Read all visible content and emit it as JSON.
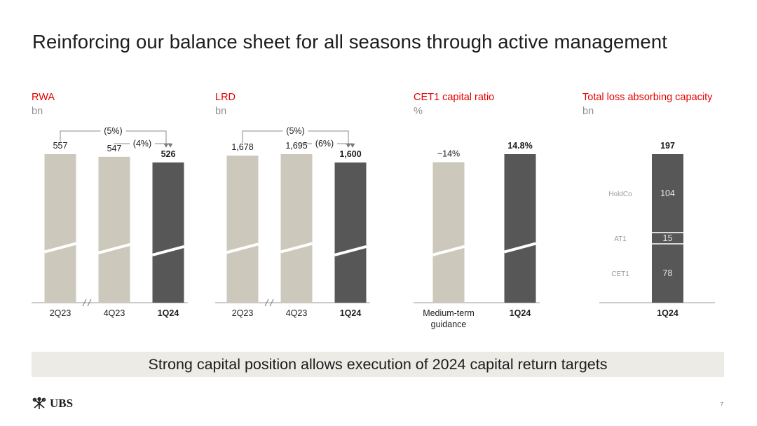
{
  "title": "Reinforcing our balance sheet for all seasons through active management",
  "banner": "Strong capital position allows execution of 2024 capital return targets",
  "logo_text": "UBS",
  "page_number": "7",
  "colors": {
    "accent": "#e60000",
    "bar_light": "#ccc9bc",
    "bar_dark": "#575757",
    "banner_bg": "#ecebe6",
    "unit_text": "#8e8e8e"
  },
  "chart_data": [
    {
      "id": "rwa",
      "type": "bar",
      "title": "RWA",
      "unit": "bn",
      "axis_break": "//",
      "categories": [
        "2Q23",
        "4Q23",
        "1Q24"
      ],
      "values": [
        557,
        547,
        526
      ],
      "value_labels": [
        "557",
        "547",
        "526"
      ],
      "highlight": [
        false,
        false,
        true
      ],
      "changes": [
        "(5%)",
        "(4%)"
      ],
      "change_from": [
        "2Q23",
        "4Q23"
      ],
      "change_to": "1Q24"
    },
    {
      "id": "lrd",
      "type": "bar",
      "title": "LRD",
      "unit": "bn",
      "axis_break": "//",
      "categories": [
        "2Q23",
        "4Q23",
        "1Q24"
      ],
      "values": [
        1678,
        1695,
        1600
      ],
      "value_labels": [
        "1,678",
        "1,695",
        "1,600"
      ],
      "highlight": [
        false,
        false,
        true
      ],
      "changes": [
        "(5%)",
        "(6%)"
      ],
      "change_from": [
        "2Q23",
        "4Q23"
      ],
      "change_to": "1Q24"
    },
    {
      "id": "cet1",
      "type": "bar",
      "title": "CET1 capital ratio",
      "unit": "%",
      "categories": [
        "Medium-term guidance",
        "1Q24"
      ],
      "category_lines": [
        [
          "Medium-term",
          "guidance"
        ],
        [
          "1Q24"
        ]
      ],
      "values": [
        14,
        14.8
      ],
      "value_labels": [
        "~14%",
        "14.8%"
      ],
      "highlight": [
        false,
        true
      ]
    },
    {
      "id": "tlac",
      "type": "bar",
      "stacked": true,
      "title": "Total loss absorbing capacity",
      "unit": "bn",
      "categories": [
        "1Q24"
      ],
      "total": 197,
      "total_label": "197",
      "segments": [
        {
          "name": "CET1",
          "value": 78
        },
        {
          "name": "AT1",
          "value": 15
        },
        {
          "name": "HoldCo",
          "value": 104
        }
      ]
    }
  ]
}
